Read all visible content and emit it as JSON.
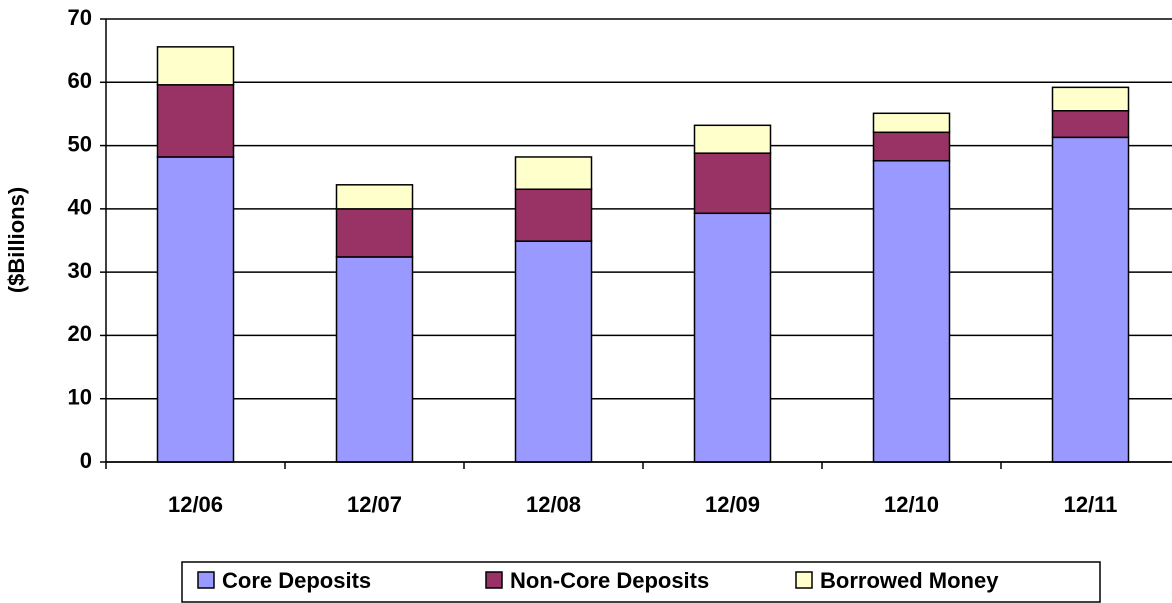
{
  "chart_data": {
    "type": "stacked-bar",
    "y_label": "($Billions)",
    "categories": [
      "12/06",
      "12/07",
      "12/08",
      "12/09",
      "12/10",
      "12/11"
    ],
    "series": [
      {
        "name": "Core Deposits",
        "color": "#9999ff",
        "values": [
          48.2,
          32.4,
          34.9,
          39.3,
          47.6,
          51.3
        ]
      },
      {
        "name": "Non-Core Deposits",
        "color": "#993366",
        "values": [
          11.4,
          7.6,
          8.2,
          9.5,
          4.5,
          4.2
        ]
      },
      {
        "name": "Borrowed Money",
        "color": "#ffffcc",
        "values": [
          6.0,
          3.8,
          5.1,
          4.4,
          3.0,
          3.7
        ]
      }
    ],
    "ylim": [
      0,
      70
    ],
    "yticks": [
      0,
      10,
      20,
      30,
      40,
      50,
      60,
      70
    ],
    "grid": true
  }
}
